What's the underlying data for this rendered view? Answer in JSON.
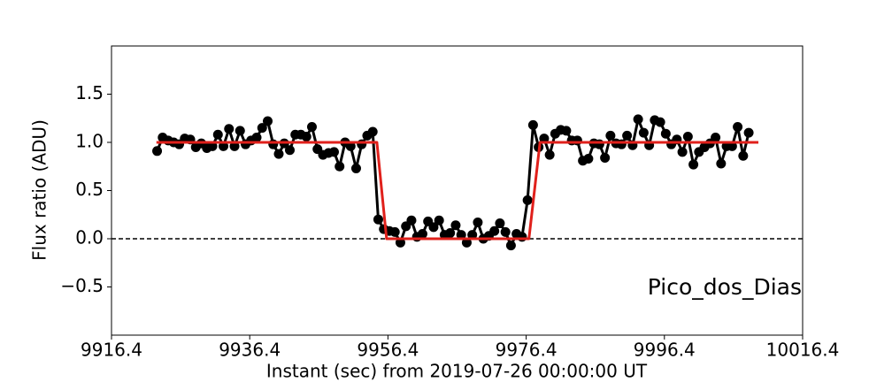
{
  "chart_data": {
    "type": "line",
    "xlabel": "Instant (sec) from 2019-07-26 00:00:00 UT",
    "ylabel": "Flux ratio (ADU)",
    "annotation": "Pico_dos_Dias",
    "xlim": [
      9916.4,
      10016.4
    ],
    "xticks": [
      9916.4,
      9936.4,
      9956.4,
      9976.4,
      9996.4,
      10016.4
    ],
    "ylim": [
      -1,
      2
    ],
    "yticks": [
      {
        "value": -0.5,
        "label": "−0.5"
      },
      {
        "value": 0,
        "label": "0.0"
      },
      {
        "value": 0.5,
        "label": "0.5"
      },
      {
        "value": 1,
        "label": "1.0"
      },
      {
        "value": 1.5,
        "label": "1.5"
      }
    ],
    "hlines": [
      {
        "value": 0,
        "style": "dashed",
        "color": "#000000"
      }
    ],
    "series": [
      {
        "color": "#000000",
        "markers": true,
        "x": [
          9923.0,
          9923.8,
          9924.6,
          9925.4,
          9926.2,
          9927.0,
          9927.8,
          9928.6,
          9929.4,
          9930.2,
          9931.0,
          9931.8,
          9932.6,
          9933.4,
          9934.2,
          9935.0,
          9935.8,
          9936.6,
          9937.4,
          9938.2,
          9939.0,
          9939.8,
          9940.6,
          9941.4,
          9942.2,
          9943.0,
          9943.8,
          9944.6,
          9945.4,
          9946.2,
          9947.0,
          9947.8,
          9948.6,
          9949.4,
          9950.2,
          9951.0,
          9951.8,
          9952.6,
          9953.4,
          9954.2,
          9955.0,
          9955.8,
          9956.6,
          9957.4,
          9958.2,
          9959.0,
          9959.8,
          9960.6,
          9961.4,
          9962.2,
          9963.0,
          9963.8,
          9964.6,
          9965.4,
          9966.2,
          9967.0,
          9967.8,
          9968.6,
          9969.4,
          9970.2,
          9971.0,
          9971.8,
          9972.6,
          9973.4,
          9974.2,
          9975.0,
          9975.8,
          9976.6,
          9977.4,
          9978.2,
          9979.0,
          9979.8,
          9980.6,
          9981.4,
          9982.2,
          9983.0,
          9983.8,
          9984.6,
          9985.4,
          9986.2,
          9987.0,
          9987.8,
          9988.6,
          9989.4,
          9990.2,
          9991.0,
          9991.8,
          9992.6,
          9993.4,
          9994.2,
          9995.0,
          9995.8,
          9996.6,
          9997.4,
          9998.2,
          9999.0,
          9999.8,
          10000.6,
          10001.4,
          10002.2,
          10003.0,
          10003.8,
          10004.6,
          10005.4,
          10006.2,
          10007.0,
          10007.8,
          10008.6
        ],
        "values": [
          0.91,
          1.05,
          1.02,
          1.0,
          0.98,
          1.04,
          1.03,
          0.95,
          0.99,
          0.94,
          0.96,
          1.08,
          0.96,
          1.14,
          0.96,
          1.12,
          0.98,
          1.02,
          1.05,
          1.15,
          1.22,
          0.98,
          0.88,
          0.99,
          0.92,
          1.08,
          1.08,
          1.06,
          1.16,
          0.93,
          0.87,
          0.89,
          0.9,
          0.75,
          1.0,
          0.96,
          0.73,
          0.98,
          1.07,
          1.11,
          0.2,
          0.1,
          0.08,
          0.07,
          -0.04,
          0.13,
          0.19,
          0.02,
          0.05,
          0.18,
          0.12,
          0.19,
          0.04,
          0.06,
          0.14,
          0.04,
          -0.04,
          0.04,
          0.17,
          0.0,
          0.03,
          0.08,
          0.16,
          0.07,
          -0.07,
          0.05,
          0.02,
          0.4,
          1.18,
          0.95,
          1.04,
          0.87,
          1.09,
          1.13,
          1.12,
          1.02,
          1.02,
          0.81,
          0.83,
          0.99,
          0.98,
          0.84,
          1.07,
          0.99,
          0.98,
          1.07,
          0.97,
          1.24,
          1.1,
          0.97,
          1.23,
          1.21,
          1.09,
          0.98,
          1.03,
          0.9,
          1.06,
          0.77,
          0.9,
          0.95,
          0.99,
          1.05,
          0.78,
          0.96,
          0.96,
          1.16,
          0.86,
          1.1
        ]
      },
      {
        "color": "#e0201b",
        "markers": false,
        "x": [
          9922.9,
          9954.8,
          9956.2,
          9976.8,
          9978.4,
          10010.0
        ],
        "values": [
          1,
          1,
          0,
          0,
          1,
          1
        ]
      }
    ]
  }
}
